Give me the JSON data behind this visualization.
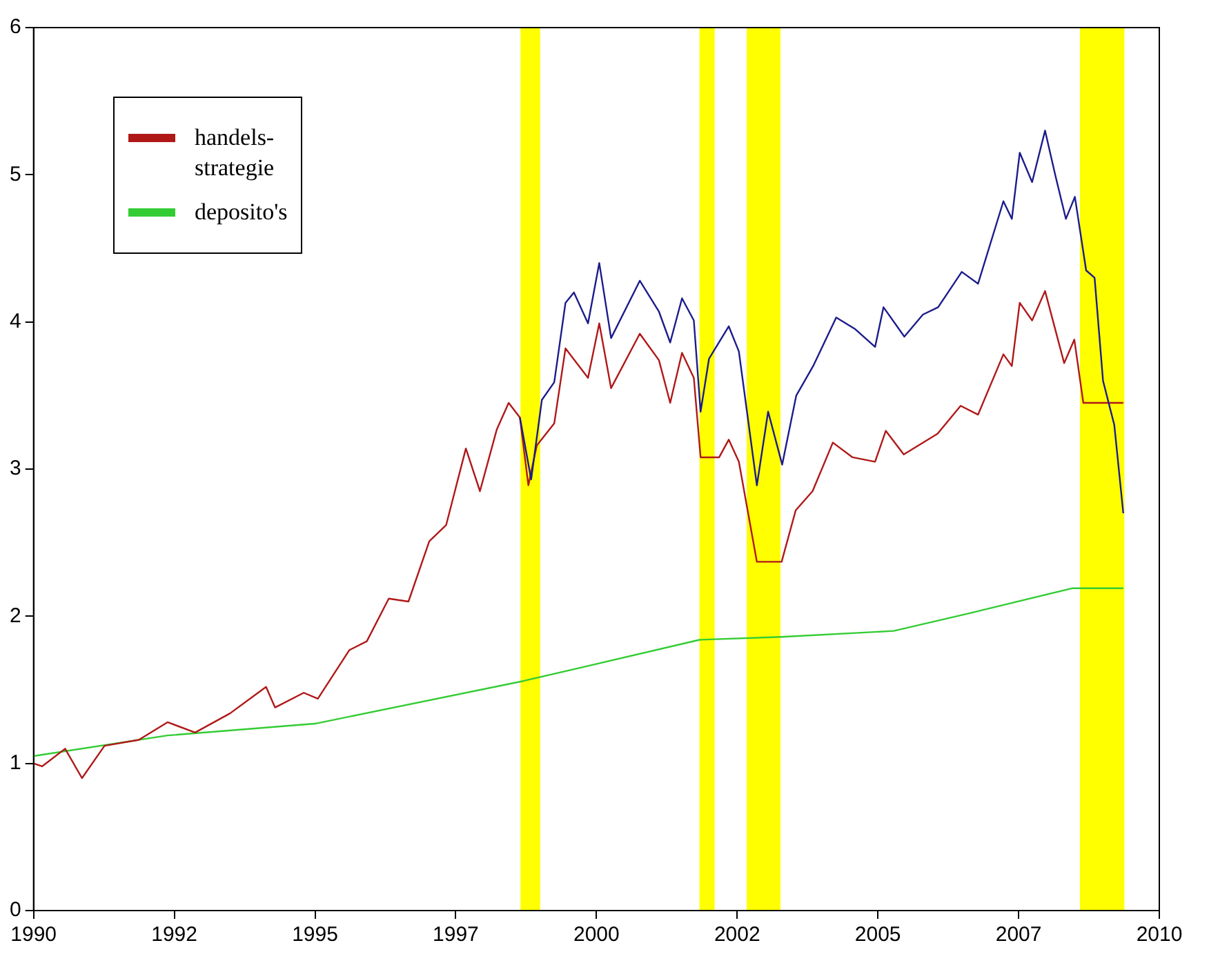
{
  "chart_data": {
    "type": "line",
    "xlim": [
      1990,
      2010
    ],
    "xticks": [
      1990,
      {
        "value": 1992.5,
        "label": "1992"
      },
      1995,
      {
        "value": 1997.5,
        "label": "1997"
      },
      2000,
      {
        "value": 2002.5,
        "label": "2002"
      },
      2005,
      {
        "value": 2007.5,
        "label": "2007"
      },
      2010
    ],
    "ylim": [
      0,
      6
    ],
    "yticks": [
      0,
      1,
      2,
      3,
      4,
      5,
      6
    ],
    "grid": false,
    "legend": "top left",
    "line_style": "solid",
    "marker": "none",
    "bands": [
      {
        "axis": "x",
        "from": 1998.65,
        "to": 1999.0,
        "color": "#ffff00"
      },
      {
        "axis": "x",
        "from": 2001.83,
        "to": 2002.1,
        "color": "#ffff00"
      },
      {
        "axis": "x",
        "from": 2002.67,
        "to": 2003.27,
        "color": "#ffff00"
      },
      {
        "axis": "x",
        "from": 2008.59,
        "to": 2009.38,
        "color": "#ffff00"
      }
    ],
    "series": [
      {
        "color": "#1c1c8c",
        "x": [
          1998.64,
          1998.84,
          1999.03,
          1999.25,
          1999.45,
          1999.6,
          1999.85,
          2000.05,
          2000.26,
          2000.77,
          2001.11,
          2001.31,
          2001.52,
          2001.73,
          2001.85,
          2002.0,
          2002.35,
          2002.53,
          2002.85,
          2003.05,
          2003.3,
          2003.55,
          2003.85,
          2004.26,
          2004.6,
          2004.95,
          2005.1,
          2005.47,
          2005.8,
          2006.07,
          2006.49,
          2006.78,
          2007.23,
          2007.38,
          2007.52,
          2007.74,
          2007.97,
          2008.15,
          2008.34,
          2008.5,
          2008.7,
          2008.85,
          2009.0,
          2009.2,
          2009.36
        ],
        "values": [
          3.35,
          2.93,
          3.47,
          3.59,
          4.13,
          4.2,
          3.99,
          4.4,
          3.89,
          4.28,
          4.07,
          3.86,
          4.16,
          4.01,
          3.39,
          3.75,
          3.97,
          3.8,
          2.89,
          3.39,
          3.03,
          3.5,
          3.7,
          4.03,
          3.95,
          3.83,
          4.1,
          3.9,
          4.05,
          4.1,
          4.34,
          4.26,
          4.82,
          4.7,
          5.15,
          4.95,
          5.3,
          5.0,
          4.7,
          4.85,
          4.35,
          4.3,
          3.6,
          3.3,
          2.7
        ]
      },
      {
        "name": "handels-\nstrategie",
        "color": "#b01818",
        "x": [
          1990.0,
          1990.15,
          1990.56,
          1990.86,
          1991.26,
          1991.87,
          1992.38,
          1992.87,
          1993.49,
          1994.13,
          1994.29,
          1994.8,
          1995.05,
          1995.61,
          1995.92,
          1996.31,
          1996.66,
          1997.03,
          1997.33,
          1997.68,
          1997.93,
          1998.23,
          1998.44,
          1998.64,
          1998.79,
          1998.94,
          1999.25,
          1999.45,
          1999.85,
          2000.05,
          2000.26,
          2000.77,
          2001.11,
          2001.31,
          2001.52,
          2001.73,
          2001.85,
          2002.18,
          2002.35,
          2002.53,
          2002.85,
          2003.29,
          2003.54,
          2003.84,
          2004.2,
          2004.55,
          2004.95,
          2005.14,
          2005.46,
          2006.06,
          2006.47,
          2006.78,
          2007.23,
          2007.38,
          2007.52,
          2007.74,
          2007.97,
          2008.31,
          2008.49,
          2008.65,
          2009.36
        ],
        "values": [
          1.0,
          0.98,
          1.1,
          0.9,
          1.12,
          1.16,
          1.28,
          1.21,
          1.34,
          1.52,
          1.38,
          1.48,
          1.44,
          1.77,
          1.83,
          2.12,
          2.1,
          2.51,
          2.62,
          3.14,
          2.85,
          3.27,
          3.45,
          3.35,
          2.89,
          3.16,
          3.31,
          3.82,
          3.62,
          3.99,
          3.55,
          3.92,
          3.74,
          3.45,
          3.79,
          3.62,
          3.08,
          3.08,
          3.2,
          3.05,
          2.37,
          2.37,
          2.72,
          2.85,
          3.18,
          3.08,
          3.05,
          3.26,
          3.1,
          3.24,
          3.43,
          3.37,
          3.78,
          3.7,
          4.13,
          4.01,
          4.21,
          3.72,
          3.88,
          3.45,
          3.45
        ]
      },
      {
        "name": "deposito's",
        "color": "#33cc33",
        "x": [
          1990.0,
          1992.38,
          1995.0,
          1998.7,
          1999.6,
          2001.83,
          2003.29,
          2005.28,
          2006.62,
          2008.45,
          2009.36
        ],
        "values": [
          1.05,
          1.19,
          1.27,
          1.56,
          1.64,
          1.84,
          1.86,
          1.9,
          2.02,
          2.19,
          2.19
        ]
      }
    ]
  }
}
